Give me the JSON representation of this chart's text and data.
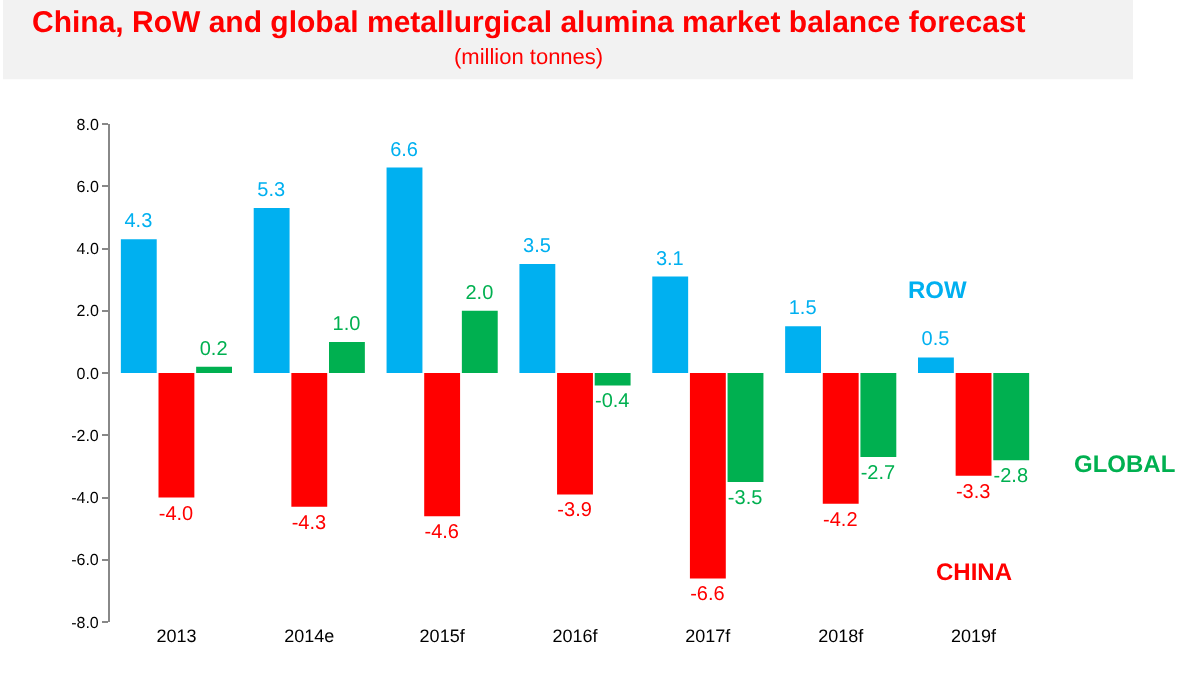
{
  "chart_data": {
    "type": "bar",
    "title": "China, RoW and global metallurgical alumina market balance forecast",
    "subtitle": "(million tonnes)",
    "categories": [
      "2013",
      "2014e",
      "2015f",
      "2016f",
      "2017f",
      "2018f",
      "2019f"
    ],
    "series": [
      {
        "name": "ROW",
        "color": "#00b0f0",
        "values": [
          4.3,
          5.3,
          6.6,
          3.5,
          3.1,
          1.5,
          0.5
        ],
        "value_labels": [
          "4.3",
          "5.3",
          "6.6",
          "3.5",
          "3.1",
          "1.5",
          "0.5"
        ]
      },
      {
        "name": "CHINA",
        "color": "#ff0000",
        "values": [
          -4.0,
          -4.3,
          -4.6,
          -3.9,
          -6.6,
          -4.2,
          -3.3
        ],
        "value_labels": [
          "-4.0",
          "-4.3",
          "-4.6",
          "-3.9",
          "-6.6",
          "-4.2",
          "-3.3"
        ]
      },
      {
        "name": "GLOBAL",
        "color": "#00b050",
        "values": [
          0.2,
          1.0,
          2.0,
          -0.4,
          -3.5,
          -2.7,
          -2.8
        ],
        "value_labels": [
          "0.2",
          "1.0",
          "2.0",
          "-0.4",
          "-3.5",
          "-2.7",
          "-2.8"
        ]
      }
    ],
    "ylim": [
      -8,
      8
    ],
    "yticks": [
      {
        "value": -8,
        "label": "-8.0"
      },
      {
        "value": -6,
        "label": "-6.0"
      },
      {
        "value": -4,
        "label": "-4.0"
      },
      {
        "value": -2,
        "label": "-2.0"
      },
      {
        "value": 0,
        "label": "0.0"
      },
      {
        "value": 2,
        "label": "2.0"
      },
      {
        "value": 4,
        "label": "4.0"
      },
      {
        "value": 6,
        "label": "6.0"
      },
      {
        "value": 8,
        "label": "8.0"
      }
    ],
    "legend": false
  }
}
